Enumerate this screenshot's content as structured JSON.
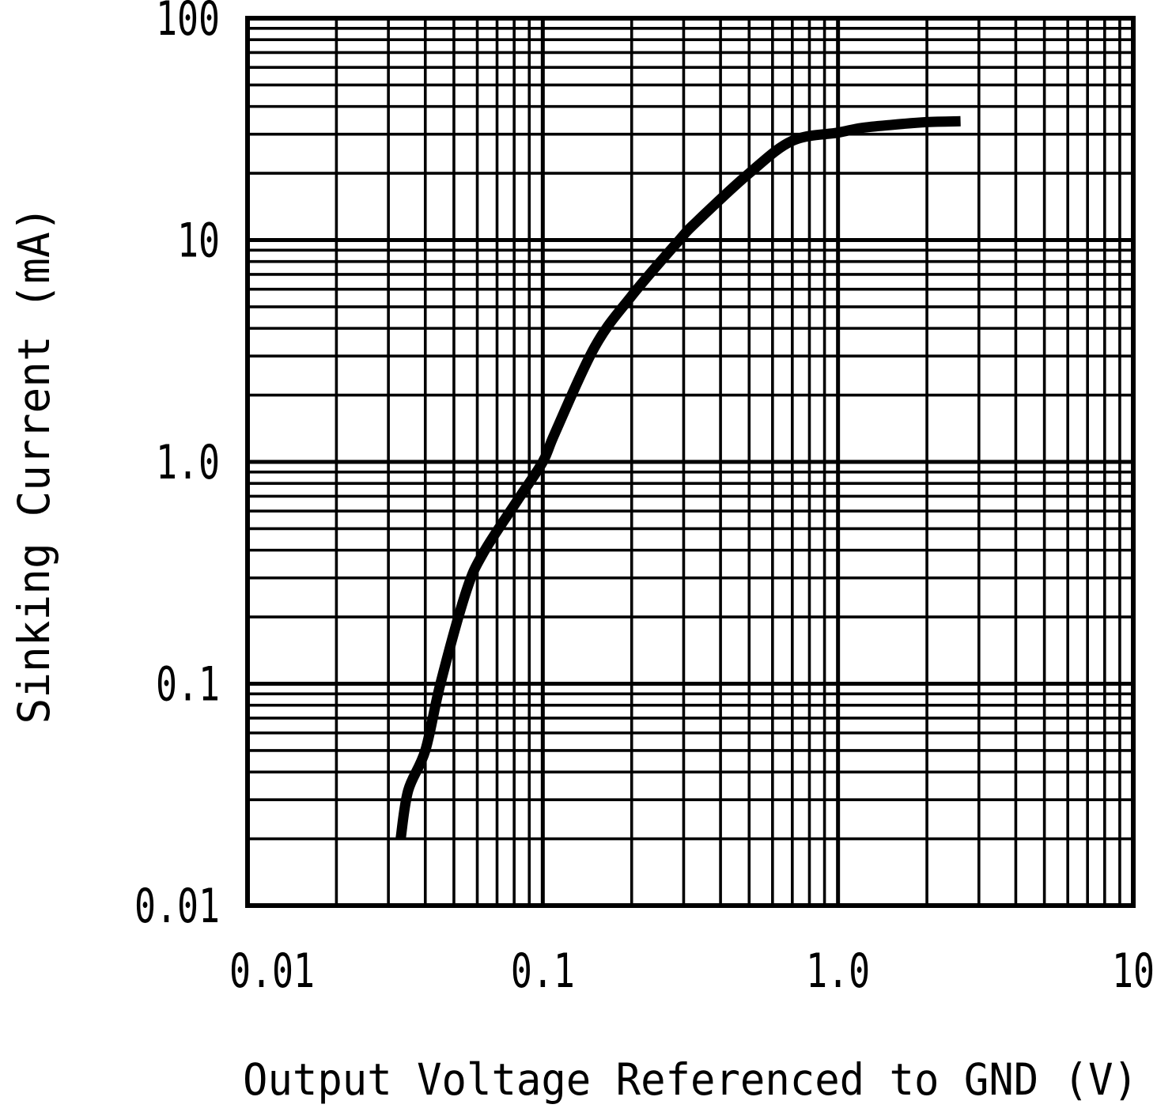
{
  "figure": {
    "background_color": "#ffffff",
    "ink_color": "#000000"
  },
  "chart_data": {
    "type": "line",
    "title": "",
    "xlabel": "Output Voltage Referenced to GND (V)",
    "ylabel": "Sinking Current (mA)",
    "x_scale": "log",
    "y_scale": "log",
    "xlim": [
      0.01,
      10
    ],
    "ylim": [
      0.01,
      100
    ],
    "grid": "full log grid, minor and major lines on both axes",
    "legend": "none",
    "x_ticks": [
      {
        "value": 0.01,
        "label": "0.01"
      },
      {
        "value": 0.1,
        "label": "0.1"
      },
      {
        "value": 1.0,
        "label": "1.0"
      },
      {
        "value": 10,
        "label": "10"
      }
    ],
    "y_ticks": [
      {
        "value": 100,
        "label": "100"
      },
      {
        "value": 10,
        "label": "10"
      },
      {
        "value": 1.0,
        "label": "1.0"
      },
      {
        "value": 0.1,
        "label": "0.1"
      },
      {
        "value": 0.01,
        "label": "0.01"
      }
    ],
    "series": [
      {
        "name": "sinking-current-curve",
        "color": "#000000",
        "points": [
          [
            0.033,
            0.02
          ],
          [
            0.035,
            0.033
          ],
          [
            0.04,
            0.05
          ],
          [
            0.045,
            0.1
          ],
          [
            0.055,
            0.26
          ],
          [
            0.063,
            0.39
          ],
          [
            0.082,
            0.67
          ],
          [
            0.1,
            1.0
          ],
          [
            0.11,
            1.35
          ],
          [
            0.15,
            3.3
          ],
          [
            0.2,
            5.6
          ],
          [
            0.29,
            10
          ],
          [
            0.33,
            12
          ],
          [
            0.5,
            20
          ],
          [
            0.7,
            28
          ],
          [
            1.0,
            30.5
          ],
          [
            1.2,
            32
          ],
          [
            1.5,
            33
          ],
          [
            2.0,
            34
          ],
          [
            2.6,
            34.3
          ]
        ]
      }
    ]
  }
}
